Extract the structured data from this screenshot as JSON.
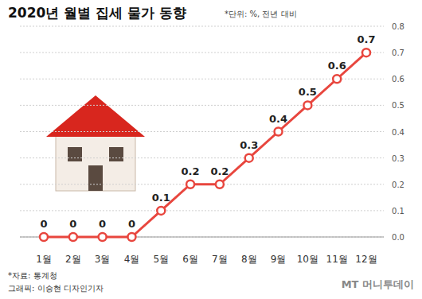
{
  "chart_data": {
    "type": "line",
    "title": "2020년 월별 집세 물가 동향",
    "subtitle": "*단위: %, 전년 대비",
    "categories": [
      "1월",
      "2월",
      "3월",
      "4월",
      "5월",
      "6월",
      "7월",
      "8월",
      "9월",
      "10월",
      "11월",
      "12월"
    ],
    "values": [
      0,
      0,
      0,
      0,
      0.1,
      0.2,
      0.2,
      0.3,
      0.4,
      0.5,
      0.6,
      0.7
    ],
    "color": "#e8463e",
    "marker": "circle",
    "line_style": "solid",
    "ylim": [
      0,
      0.8
    ],
    "yticks": [
      {
        "value": 0,
        "label": "0.0"
      },
      0.1,
      0.2,
      0.3,
      0.4,
      0.5,
      0.6,
      0.7,
      0.8
    ],
    "grid": true,
    "data_labels": true,
    "annotations": [
      "*자료: 통계청",
      "그래픽: 이승현 디자인기자",
      "MT 머니투데이"
    ]
  }
}
